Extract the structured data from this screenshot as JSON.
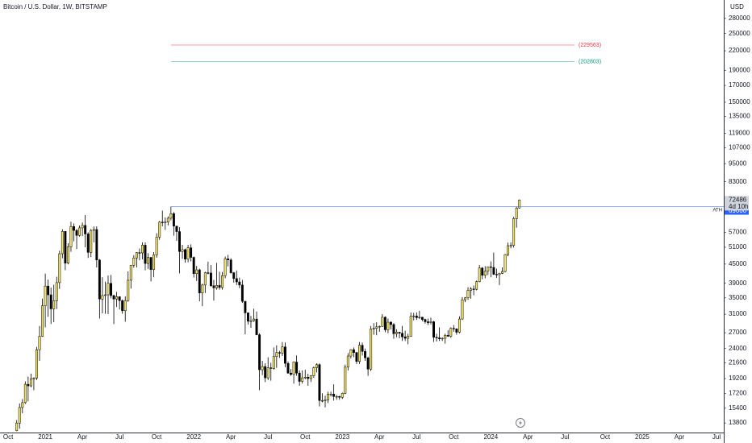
{
  "chart_data": {
    "type": "candlestick",
    "title": "Bitcoin / U.S. Dollar, 1W, BITSTAMP",
    "currency": "USD",
    "countdown": "4d 10h",
    "log_scale": true,
    "up_color": "#f5e45f",
    "down_color": "#000000",
    "ylim": [
      12850,
      321000
    ],
    "yticks": [
      280000,
      250000,
      220000,
      190000,
      170000,
      150000,
      135000,
      119000,
      107000,
      95000,
      83000,
      57000,
      51000,
      45000,
      39000,
      35000,
      31000,
      27000,
      24000,
      21600,
      19200,
      17200,
      15400,
      13800
    ],
    "levels": [
      {
        "value": 229563,
        "label": "(229563)",
        "color": "#f23645",
        "style": "segment"
      },
      {
        "value": 202803,
        "label": "(202803)",
        "color": "#089981",
        "style": "segment"
      },
      {
        "value": 69000,
        "label": "ATH",
        "color": "#2962ff",
        "style": "ray"
      }
    ],
    "categories": [
      null,
      null,
      "Oct",
      null,
      null,
      null,
      null,
      null,
      null,
      null,
      null,
      null,
      null,
      null,
      null,
      "2021",
      null,
      null,
      null,
      null,
      null,
      null,
      null,
      null,
      null,
      null,
      null,
      null,
      "Apr",
      null,
      null,
      null,
      null,
      null,
      null,
      null,
      null,
      null,
      null,
      null,
      null,
      "Jul",
      null,
      null,
      null,
      null,
      null,
      null,
      null,
      null,
      null,
      null,
      null,
      null,
      "Oct",
      null,
      null,
      null,
      null,
      null,
      null,
      null,
      null,
      null,
      null,
      null,
      null,
      "2022",
      null,
      null,
      null,
      null,
      null,
      null,
      null,
      null,
      null,
      null,
      null,
      null,
      "Apr",
      null,
      null,
      null,
      null,
      null,
      null,
      null,
      null,
      null,
      null,
      null,
      null,
      "Jul",
      null,
      null,
      null,
      null,
      null,
      null,
      null,
      null,
      null,
      null,
      null,
      null,
      "Oct",
      null,
      null,
      null,
      null,
      null,
      null,
      null,
      null,
      null,
      null,
      null,
      null,
      "2023",
      null,
      null,
      null,
      null,
      null,
      null,
      null,
      null,
      null,
      null,
      null,
      null,
      "Apr",
      null,
      null,
      null,
      null,
      null,
      null,
      null,
      null,
      null,
      null,
      null,
      null,
      "Jul",
      null,
      null,
      null,
      null,
      null,
      null,
      null,
      null,
      null,
      null,
      null,
      null,
      "Oct",
      null,
      null,
      null,
      null,
      null,
      null,
      null,
      null,
      null,
      null,
      null,
      null,
      "2024",
      null,
      null,
      null,
      null,
      null,
      null,
      null,
      null,
      null,
      null,
      null,
      null,
      "Apr",
      null,
      null,
      null,
      null,
      null,
      null,
      null,
      null,
      null,
      null,
      null,
      null,
      "Jul",
      null,
      null,
      null,
      null,
      null,
      null,
      null,
      null,
      null,
      null,
      null,
      null,
      null,
      "Oct",
      null,
      null,
      null,
      null,
      null,
      null,
      null,
      null,
      null,
      null,
      null,
      null,
      "2025",
      null,
      null,
      null,
      null,
      null,
      null,
      null,
      null,
      null,
      null,
      null,
      null,
      "Apr",
      null,
      null,
      null,
      null,
      null,
      null,
      null,
      null,
      null,
      null,
      null,
      null,
      "Jul",
      null,
      null
    ],
    "candles": [
      null,
      null,
      null,
      null,
      null,
      [
        13030,
        14100,
        12980,
        13790
      ],
      [
        13790,
        15960,
        13220,
        15480
      ],
      [
        15480,
        16480,
        14830,
        16050
      ],
      [
        16050,
        18800,
        15900,
        18400
      ],
      [
        18400,
        19480,
        16200,
        18180
      ],
      [
        18180,
        19920,
        18000,
        19150
      ],
      [
        19150,
        19400,
        17600,
        19270
      ],
      [
        19270,
        24300,
        19000,
        23800
      ],
      [
        23800,
        28400,
        21900,
        26300
      ],
      [
        26300,
        34800,
        26200,
        33000
      ],
      [
        33000,
        41950,
        28100,
        38200
      ],
      [
        38200,
        40100,
        30400,
        35800
      ],
      [
        35800,
        37800,
        28800,
        32250
      ],
      [
        32250,
        38600,
        29200,
        34250
      ],
      [
        34250,
        40950,
        32200,
        39200
      ],
      [
        39200,
        49700,
        37400,
        48600
      ],
      [
        48600,
        58300,
        47000,
        57400
      ],
      [
        57400,
        57500,
        43000,
        45300
      ],
      [
        45300,
        52600,
        44900,
        51200
      ],
      [
        51200,
        61700,
        49300,
        59500
      ],
      [
        59500,
        60900,
        53300,
        57800
      ],
      [
        57800,
        58500,
        50300,
        55700
      ],
      [
        55700,
        60000,
        55200,
        58900
      ],
      [
        58900,
        61300,
        55400,
        60000
      ],
      [
        60000,
        64800,
        51000,
        56300
      ],
      [
        56300,
        57000,
        47100,
        49100
      ],
      [
        49100,
        58400,
        47400,
        57800
      ],
      [
        57800,
        59500,
        52900,
        58200
      ],
      [
        58200,
        59600,
        43900,
        46400
      ],
      [
        46400,
        46700,
        30000,
        34700
      ],
      [
        34700,
        40800,
        31200,
        35600
      ],
      [
        35600,
        39500,
        31100,
        35800
      ],
      [
        35800,
        41300,
        31000,
        39000
      ],
      [
        39000,
        41500,
        34900,
        35600
      ],
      [
        35600,
        35800,
        28800,
        34700
      ],
      [
        34700,
        36600,
        32700,
        35300
      ],
      [
        35300,
        35400,
        32100,
        34300
      ],
      [
        34300,
        34600,
        31100,
        31800
      ],
      [
        31800,
        35400,
        29300,
        34300
      ],
      [
        34300,
        42600,
        34000,
        39900
      ],
      [
        39900,
        44700,
        37500,
        44600
      ],
      [
        44600,
        48100,
        43800,
        47100
      ],
      [
        47100,
        49200,
        43900,
        49000
      ],
      [
        49000,
        50500,
        46300,
        48900
      ],
      [
        48900,
        52900,
        46600,
        51800
      ],
      [
        51800,
        52900,
        43000,
        45200
      ],
      [
        45200,
        48800,
        43400,
        47300
      ],
      [
        47300,
        47400,
        39600,
        43200
      ],
      [
        43200,
        49200,
        40800,
        48200
      ],
      [
        48200,
        56600,
        47200,
        55000
      ],
      [
        55000,
        62000,
        53900,
        61500
      ],
      [
        61500,
        67000,
        59600,
        61300
      ],
      [
        61300,
        63700,
        58000,
        61500
      ],
      [
        61500,
        64200,
        60000,
        63300
      ],
      [
        63300,
        69000,
        62300,
        65500
      ],
      [
        65500,
        66300,
        55600,
        59700
      ],
      [
        59700,
        59800,
        53500,
        57300
      ],
      [
        57300,
        59200,
        42000,
        49400
      ],
      [
        49400,
        51900,
        46800,
        50100
      ],
      [
        50100,
        50500,
        45500,
        46700
      ],
      [
        46700,
        51900,
        45600,
        50800
      ],
      [
        50800,
        52100,
        45900,
        47300
      ],
      [
        47300,
        47600,
        40700,
        41900
      ],
      [
        41900,
        44400,
        39700,
        43100
      ],
      [
        43100,
        43500,
        34100,
        36300
      ],
      [
        36300,
        38900,
        32900,
        38500
      ],
      [
        38500,
        42500,
        36300,
        42200
      ],
      [
        42200,
        45800,
        41700,
        42100
      ],
      [
        42100,
        44700,
        38000,
        38300
      ],
      [
        38300,
        40000,
        34300,
        37700
      ],
      [
        37700,
        45400,
        37200,
        38400
      ],
      [
        38400,
        42500,
        37200,
        37800
      ],
      [
        37800,
        42400,
        37200,
        41300
      ],
      [
        41300,
        47600,
        40500,
        46800
      ],
      [
        46800,
        48200,
        44200,
        46400
      ],
      [
        46400,
        47000,
        41900,
        42200
      ],
      [
        42200,
        42400,
        39200,
        40400
      ],
      [
        40400,
        42900,
        38500,
        39400
      ],
      [
        39400,
        40700,
        37600,
        38500
      ],
      [
        38500,
        40000,
        33700,
        34100
      ],
      [
        34100,
        34200,
        26700,
        31300
      ],
      [
        31300,
        31400,
        28700,
        29400
      ],
      [
        29400,
        30600,
        28000,
        29500
      ],
      [
        29500,
        32300,
        29300,
        29900
      ],
      [
        29900,
        31600,
        26500,
        26600
      ],
      [
        26600,
        26900,
        17600,
        20500
      ],
      [
        20500,
        21900,
        19700,
        21000
      ],
      [
        21000,
        21500,
        18700,
        19300
      ],
      [
        19300,
        22500,
        19000,
        20800
      ],
      [
        20800,
        21600,
        18900,
        20700
      ],
      [
        20700,
        24200,
        20500,
        22600
      ],
      [
        22600,
        24600,
        20800,
        23300
      ],
      [
        23300,
        23600,
        22400,
        23200
      ],
      [
        23200,
        25200,
        22700,
        24300
      ],
      [
        24300,
        25100,
        20900,
        21500
      ],
      [
        21500,
        21800,
        19900,
        20000
      ],
      [
        20000,
        20600,
        19600,
        19800
      ],
      [
        19800,
        21800,
        18500,
        21700
      ],
      [
        21700,
        22800,
        19600,
        20000
      ],
      [
        20000,
        20400,
        18200,
        18800
      ],
      [
        18800,
        20400,
        18500,
        19300
      ],
      [
        19300,
        20500,
        19100,
        19400
      ],
      [
        19400,
        19900,
        18200,
        19200
      ],
      [
        19200,
        19700,
        18700,
        19600
      ],
      [
        19600,
        21000,
        19300,
        20800
      ],
      [
        20800,
        21500,
        20100,
        21300
      ],
      [
        21300,
        21500,
        15600,
        16300
      ],
      [
        16300,
        17200,
        16100,
        16300
      ],
      [
        16300,
        16900,
        15500,
        16400
      ],
      [
        16400,
        17400,
        16000,
        17100
      ],
      [
        17100,
        17400,
        16800,
        17100
      ],
      [
        17100,
        18400,
        16300,
        16800
      ],
      [
        16800,
        17000,
        16400,
        16800
      ],
      [
        16800,
        16900,
        16400,
        16700
      ],
      [
        16700,
        17300,
        16500,
        17200
      ],
      [
        17200,
        21300,
        17100,
        20900
      ],
      [
        20900,
        23200,
        20400,
        22700
      ],
      [
        22700,
        23900,
        22300,
        23800
      ],
      [
        23800,
        24200,
        22500,
        23300
      ],
      [
        23300,
        23400,
        21400,
        21800
      ],
      [
        21800,
        25200,
        21400,
        24600
      ],
      [
        24600,
        25100,
        22800,
        23500
      ],
      [
        23500,
        24000,
        21900,
        22400
      ],
      [
        22400,
        22600,
        19600,
        20600
      ],
      [
        20600,
        28400,
        20300,
        27800
      ],
      [
        27800,
        29000,
        26600,
        27900
      ],
      [
        27900,
        29200,
        26500,
        28200
      ],
      [
        28200,
        28500,
        27200,
        28300
      ],
      [
        28300,
        31000,
        28200,
        30300
      ],
      [
        30300,
        30500,
        27100,
        27600
      ],
      [
        27600,
        30000,
        26900,
        29200
      ],
      [
        29200,
        29400,
        27700,
        28700
      ],
      [
        28700,
        29000,
        25800,
        26800
      ],
      [
        26800,
        27700,
        26100,
        27100
      ],
      [
        27100,
        27200,
        25900,
        26900
      ],
      [
        26900,
        28400,
        25400,
        26200
      ],
      [
        26200,
        27400,
        25400,
        25900
      ],
      [
        25900,
        26800,
        24800,
        26300
      ],
      [
        26300,
        31400,
        26200,
        30500
      ],
      [
        30500,
        31300,
        29600,
        30600
      ],
      [
        30600,
        31400,
        29700,
        30200
      ],
      [
        30200,
        31800,
        29900,
        30300
      ],
      [
        30300,
        30400,
        29400,
        29800
      ],
      [
        29800,
        30000,
        28900,
        29300
      ],
      [
        29300,
        30000,
        28600,
        29100
      ],
      [
        29100,
        30200,
        28700,
        29300
      ],
      [
        29300,
        29500,
        25200,
        26100
      ],
      [
        26100,
        26800,
        25300,
        26000
      ],
      [
        26000,
        28100,
        25400,
        25800
      ],
      [
        25800,
        26100,
        25400,
        25900
      ],
      [
        25900,
        26800,
        24900,
        26500
      ],
      [
        26500,
        27500,
        26200,
        26300
      ],
      [
        26300,
        28100,
        26000,
        27900
      ],
      [
        27900,
        28600,
        27200,
        27800
      ],
      [
        27800,
        27900,
        26600,
        27100
      ],
      [
        27100,
        30500,
        26900,
        29900
      ],
      [
        29900,
        35200,
        29700,
        34500
      ],
      [
        34500,
        35200,
        33900,
        35000
      ],
      [
        35000,
        37900,
        34500,
        37000
      ],
      [
        37000,
        37900,
        34800,
        37400
      ],
      [
        37400,
        38400,
        35700,
        37300
      ],
      [
        37300,
        39800,
        37000,
        39500
      ],
      [
        39500,
        44700,
        39300,
        43700
      ],
      [
        43700,
        44000,
        40200,
        41400
      ],
      [
        41400,
        44300,
        40500,
        42700
      ],
      [
        42700,
        44200,
        41500,
        44100
      ],
      [
        44100,
        45900,
        40800,
        43900
      ],
      [
        43900,
        49000,
        41500,
        41700
      ],
      [
        41700,
        43500,
        40600,
        41600
      ],
      [
        41600,
        42200,
        38500,
        42000
      ],
      [
        42000,
        43900,
        41800,
        42600
      ],
      [
        42600,
        48500,
        42300,
        48300
      ],
      [
        48300,
        52800,
        47700,
        51600
      ],
      [
        51600,
        52900,
        50600,
        51700
      ],
      [
        51700,
        64000,
        50900,
        63100
      ],
      [
        63100,
        68900,
        59000,
        68300
      ],
      [
        68300,
        72800,
        68000,
        72486
      ],
      null,
      null,
      null,
      null,
      null,
      null,
      null,
      null,
      null,
      null,
      null,
      null,
      null,
      null,
      null,
      null,
      null,
      null,
      null,
      null,
      null,
      null,
      null,
      null,
      null,
      null,
      null,
      null,
      null,
      null,
      null,
      null,
      null,
      null,
      null,
      null,
      null,
      null,
      null,
      null,
      null,
      null,
      null,
      null,
      null,
      null,
      null,
      null,
      null,
      null,
      null,
      null,
      null,
      null,
      null,
      null,
      null,
      null,
      null,
      null,
      null,
      null,
      null,
      null,
      null,
      null,
      null,
      null,
      null,
      null,
      null
    ]
  }
}
